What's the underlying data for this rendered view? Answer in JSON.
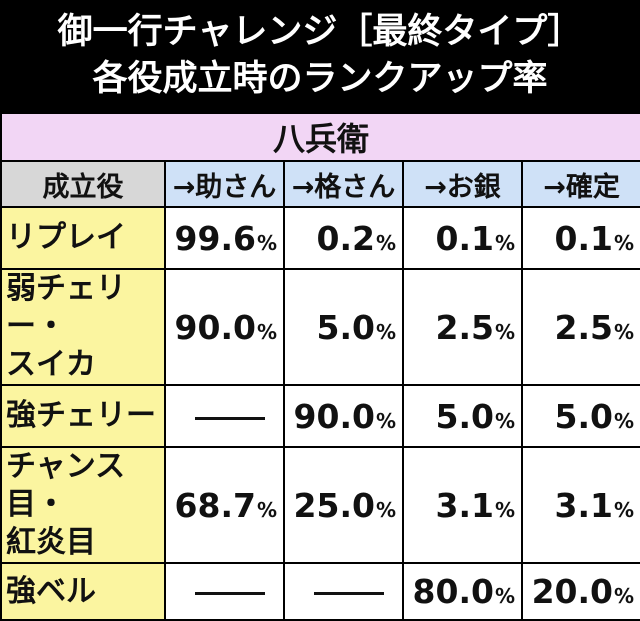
{
  "title": {
    "line1": "御一行チャレンジ［最終タイプ］",
    "line2": "各役成立時のランクアップ率"
  },
  "section": "八兵衛",
  "headers": [
    "成立役",
    "→助さん",
    "→格さん",
    "→お銀",
    "→確定"
  ],
  "rows": [
    {
      "label": "リプレイ",
      "values": [
        "99.6",
        "0.2",
        "0.1",
        "0.1"
      ]
    },
    {
      "label": "弱チェリー・\nスイカ",
      "values": [
        "90.0",
        "5.0",
        "2.5",
        "2.5"
      ]
    },
    {
      "label": "強チェリー",
      "values": [
        "—",
        "90.0",
        "5.0",
        "5.0"
      ]
    },
    {
      "label": "チャンス目・\n紅炎目",
      "values": [
        "68.7",
        "25.0",
        "3.1",
        "3.1"
      ]
    },
    {
      "label": "強ベル",
      "values": [
        "—",
        "—",
        "80.0",
        "20.0"
      ]
    }
  ],
  "percent_sign": "%",
  "colors": {
    "section_bg": "#f2d6f5",
    "header_gray": "#d7d7d7",
    "header_blue": "#cfe1f7",
    "row_label_bg": "#fbf5a0"
  }
}
